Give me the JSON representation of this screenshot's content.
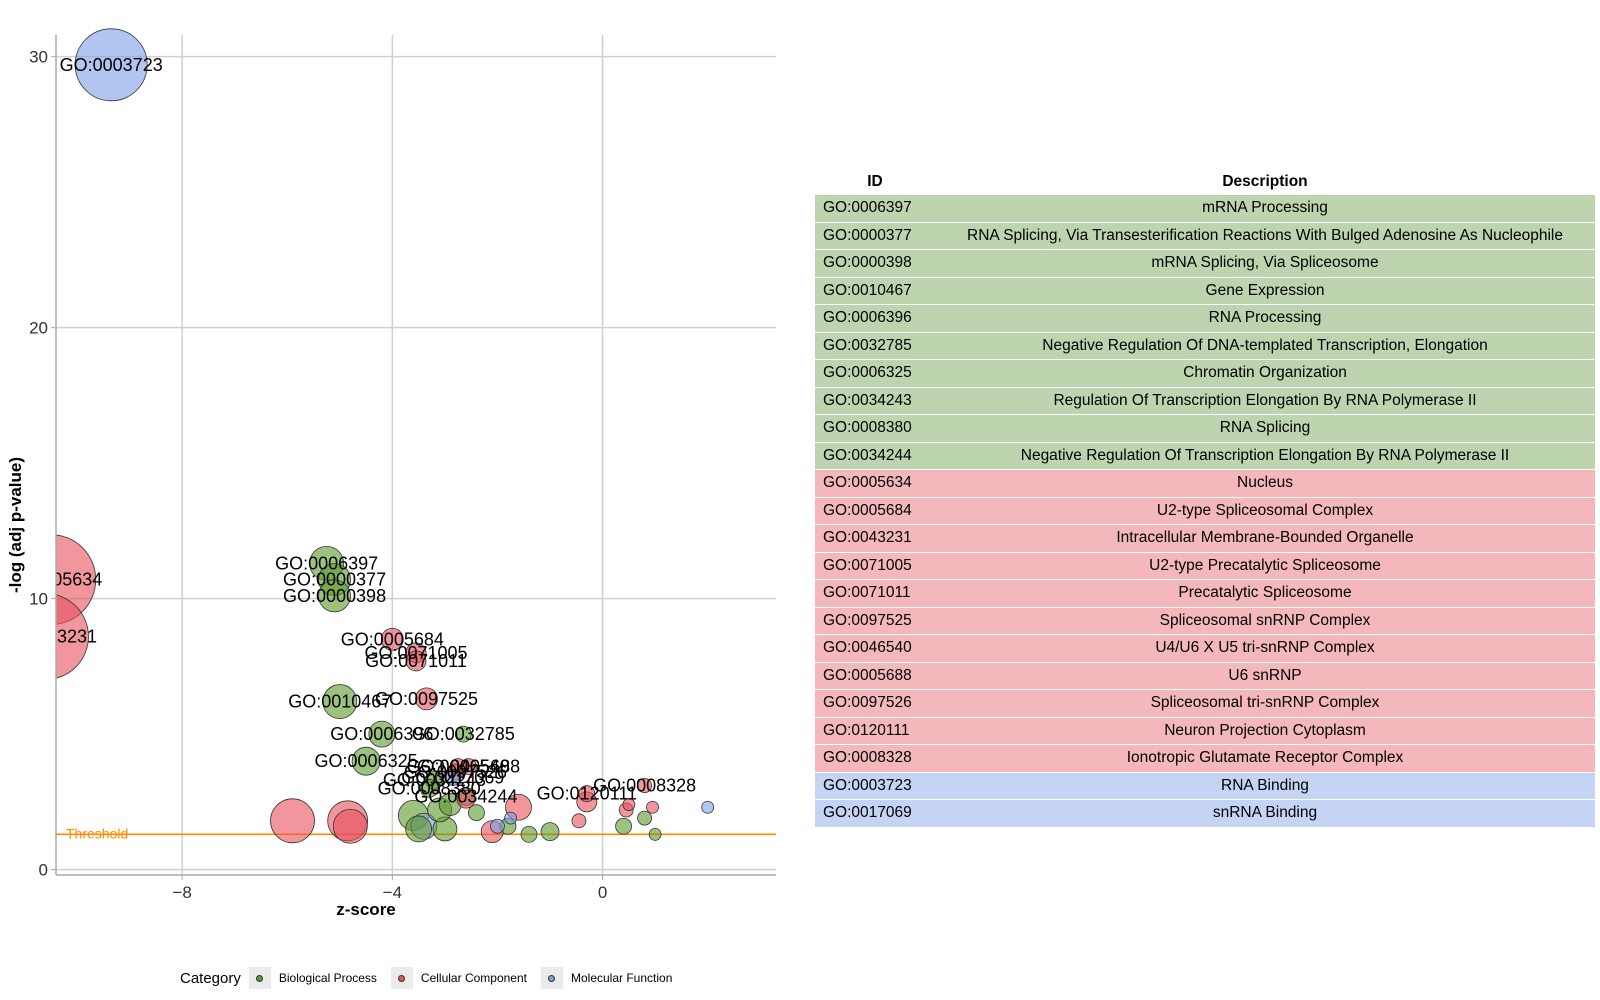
{
  "chart_data": {
    "type": "scatter",
    "xlabel": "z-score",
    "ylabel": "-log (adj p-value)",
    "xlim": [
      -10.4,
      3.3
    ],
    "ylim": [
      -0.2,
      30.8
    ],
    "x_ticks": [
      -8,
      -4,
      0
    ],
    "y_ticks": [
      0,
      10,
      20,
      30
    ],
    "grid": true,
    "threshold": {
      "label": "Threshold",
      "value": 1.3,
      "color": "#FF8C00"
    },
    "legend": {
      "title": "Category",
      "position": "bottom",
      "items": [
        {
          "label": "Biological Process",
          "color": "#5C9A2A"
        },
        {
          "label": "Cellular Component",
          "color": "#E8505B"
        },
        {
          "label": "Molecular Function",
          "color": "#7F9FE8"
        }
      ]
    },
    "points": [
      {
        "id": "GO:0003723",
        "x": -9.35,
        "y": 29.7,
        "size": 36,
        "category": "Molecular Function",
        "label": "GO:0003723"
      },
      {
        "id": "GO:0005634",
        "x": -10.5,
        "y": 10.7,
        "size": 45,
        "category": "Cellular Component",
        "label": "GO:0005634"
      },
      {
        "id": "GO:0043231",
        "x": -10.6,
        "y": 8.6,
        "size": 43,
        "category": "Cellular Component",
        "label": "GO:0043231"
      },
      {
        "id": "GO:0006397",
        "x": -5.25,
        "y": 11.3,
        "size": 17,
        "category": "Biological Process",
        "label": "GO:0006397"
      },
      {
        "id": "GO:0000377",
        "x": -5.1,
        "y": 10.7,
        "size": 16,
        "category": "Biological Process",
        "label": "GO:0000377"
      },
      {
        "id": "GO:0000398",
        "x": -5.1,
        "y": 10.1,
        "size": 16,
        "category": "Biological Process",
        "label": "GO:0000398"
      },
      {
        "id": "GO:0005684",
        "x": -4.0,
        "y": 8.5,
        "size": 11,
        "category": "Cellular Component",
        "label": "GO:0005684"
      },
      {
        "id": "GO:0071005",
        "x": -3.55,
        "y": 8.0,
        "size": 10,
        "category": "Cellular Component",
        "label": "GO:0071005"
      },
      {
        "id": "GO:0071011",
        "x": -3.55,
        "y": 7.7,
        "size": 10,
        "category": "Cellular Component",
        "label": "GO:0071011"
      },
      {
        "id": "GO:0010467",
        "x": -5.0,
        "y": 6.2,
        "size": 17,
        "category": "Biological Process",
        "label": "GO:0010467"
      },
      {
        "id": "GO:0097525",
        "x": -3.35,
        "y": 6.3,
        "size": 11,
        "category": "Cellular Component",
        "label": "GO:0097525"
      },
      {
        "id": "GO:0006396",
        "x": -4.2,
        "y": 5.0,
        "size": 13,
        "category": "Biological Process",
        "label": "GO:0006396"
      },
      {
        "id": "GO:0032785",
        "x": -2.65,
        "y": 5.0,
        "size": 8,
        "category": "Biological Process",
        "label": "GO:0032785"
      },
      {
        "id": "GO:0006325",
        "x": -4.5,
        "y": 4.0,
        "size": 14,
        "category": "Biological Process",
        "label": "GO:0006325"
      },
      {
        "id": "GO:0046540",
        "x": -2.75,
        "y": 3.8,
        "size": 8,
        "category": "Cellular Component",
        "label": "GO:0046540"
      },
      {
        "id": "GO:0005688",
        "x": -2.55,
        "y": 3.8,
        "size": 8,
        "category": "Cellular Component",
        "label": "GO:0005688"
      },
      {
        "id": "GO:0097526",
        "x": -2.8,
        "y": 3.6,
        "size": 8,
        "category": "Cellular Component",
        "label": "GO:0097526"
      },
      {
        "id": "GO:0017069",
        "x": -2.85,
        "y": 3.4,
        "size": 8,
        "category": "Molecular Function",
        "label": "GO:0017069"
      },
      {
        "id": "GO:0034243",
        "x": -3.2,
        "y": 3.3,
        "size": 9,
        "category": "Biological Process",
        "label": "GO:0034243"
      },
      {
        "id": "GO:0008380",
        "x": -3.3,
        "y": 3.0,
        "size": 9,
        "category": "Biological Process",
        "label": "GO:0008380"
      },
      {
        "id": "GO:0034244",
        "x": -2.6,
        "y": 2.7,
        "size": 9,
        "category": "Biological Process",
        "label": "GO:0034244"
      },
      {
        "id": "GO:0120111",
        "x": -0.3,
        "y": 2.8,
        "size": 8,
        "category": "Cellular Component",
        "label": "GO:0120111"
      },
      {
        "id": "GO:0008328",
        "x": 0.8,
        "y": 3.1,
        "size": 7,
        "category": "Cellular Component",
        "label": "GO:0008328"
      },
      {
        "id": "",
        "x": -5.9,
        "y": 1.8,
        "size": 22,
        "category": "Cellular Component",
        "label": ""
      },
      {
        "id": "",
        "x": -4.85,
        "y": 1.8,
        "size": 20,
        "category": "Cellular Component",
        "label": ""
      },
      {
        "id": "",
        "x": -4.8,
        "y": 1.6,
        "size": 17,
        "category": "Cellular Component",
        "label": ""
      },
      {
        "id": "",
        "x": -3.6,
        "y": 2.0,
        "size": 15,
        "category": "Biological Process",
        "label": ""
      },
      {
        "id": "",
        "x": -3.4,
        "y": 1.6,
        "size": 13,
        "category": "Molecular Function",
        "label": ""
      },
      {
        "id": "",
        "x": -3.5,
        "y": 1.5,
        "size": 13,
        "category": "Biological Process",
        "label": ""
      },
      {
        "id": "",
        "x": -3.0,
        "y": 1.5,
        "size": 12,
        "category": "Biological Process",
        "label": ""
      },
      {
        "id": "",
        "x": -3.1,
        "y": 2.2,
        "size": 12,
        "category": "Biological Process",
        "label": ""
      },
      {
        "id": "",
        "x": -2.9,
        "y": 2.4,
        "size": 11,
        "category": "Biological Process",
        "label": ""
      },
      {
        "id": "",
        "x": -1.6,
        "y": 2.3,
        "size": 13,
        "category": "Cellular Component",
        "label": ""
      },
      {
        "id": "",
        "x": -2.1,
        "y": 1.4,
        "size": 11,
        "category": "Cellular Component",
        "label": ""
      },
      {
        "id": "",
        "x": -0.3,
        "y": 2.5,
        "size": 10,
        "category": "Cellular Component",
        "label": ""
      },
      {
        "id": "",
        "x": -2.6,
        "y": 2.6,
        "size": 9,
        "category": "Cellular Component",
        "label": ""
      },
      {
        "id": "",
        "x": -2.4,
        "y": 2.1,
        "size": 8,
        "category": "Biological Process",
        "label": ""
      },
      {
        "id": "",
        "x": -1.8,
        "y": 1.6,
        "size": 8,
        "category": "Biological Process",
        "label": ""
      },
      {
        "id": "",
        "x": -1.4,
        "y": 1.3,
        "size": 8,
        "category": "Biological Process",
        "label": ""
      },
      {
        "id": "",
        "x": -1.0,
        "y": 1.4,
        "size": 9,
        "category": "Biological Process",
        "label": ""
      },
      {
        "id": "",
        "x": -2.0,
        "y": 1.6,
        "size": 7,
        "category": "Molecular Function",
        "label": ""
      },
      {
        "id": "",
        "x": -1.75,
        "y": 1.9,
        "size": 6,
        "category": "Molecular Function",
        "label": ""
      },
      {
        "id": "",
        "x": -0.45,
        "y": 1.8,
        "size": 7,
        "category": "Cellular Component",
        "label": ""
      },
      {
        "id": "",
        "x": 0.4,
        "y": 1.6,
        "size": 8,
        "category": "Biological Process",
        "label": ""
      },
      {
        "id": "",
        "x": 0.8,
        "y": 1.9,
        "size": 7,
        "category": "Biological Process",
        "label": ""
      },
      {
        "id": "",
        "x": 0.45,
        "y": 2.2,
        "size": 7,
        "category": "Cellular Component",
        "label": ""
      },
      {
        "id": "",
        "x": 0.5,
        "y": 2.4,
        "size": 6,
        "category": "Cellular Component",
        "label": ""
      },
      {
        "id": "",
        "x": 0.95,
        "y": 2.3,
        "size": 6,
        "category": "Cellular Component",
        "label": ""
      },
      {
        "id": "",
        "x": 1.0,
        "y": 1.3,
        "size": 6,
        "category": "Biological Process",
        "label": ""
      },
      {
        "id": "",
        "x": 2.0,
        "y": 2.3,
        "size": 6,
        "category": "Molecular Function",
        "label": ""
      }
    ]
  },
  "table": {
    "headers": {
      "id": "ID",
      "description": "Description"
    },
    "rows": [
      {
        "id": "GO:0006397",
        "description": "mRNA Processing",
        "category": "Biological Process"
      },
      {
        "id": "GO:0000377",
        "description": "RNA Splicing, Via Transesterification Reactions With Bulged Adenosine As Nucleophile",
        "category": "Biological Process"
      },
      {
        "id": "GO:0000398",
        "description": "mRNA Splicing, Via Spliceosome",
        "category": "Biological Process"
      },
      {
        "id": "GO:0010467",
        "description": "Gene Expression",
        "category": "Biological Process"
      },
      {
        "id": "GO:0006396",
        "description": "RNA Processing",
        "category": "Biological Process"
      },
      {
        "id": "GO:0032785",
        "description": "Negative Regulation Of DNA-templated Transcription, Elongation",
        "category": "Biological Process"
      },
      {
        "id": "GO:0006325",
        "description": "Chromatin Organization",
        "category": "Biological Process"
      },
      {
        "id": "GO:0034243",
        "description": "Regulation Of Transcription Elongation By RNA Polymerase II",
        "category": "Biological Process"
      },
      {
        "id": "GO:0008380",
        "description": "RNA Splicing",
        "category": "Biological Process"
      },
      {
        "id": "GO:0034244",
        "description": "Negative Regulation Of Transcription Elongation By RNA Polymerase II",
        "category": "Biological Process"
      },
      {
        "id": "GO:0005634",
        "description": "Nucleus",
        "category": "Cellular Component"
      },
      {
        "id": "GO:0005684",
        "description": "U2-type Spliceosomal Complex",
        "category": "Cellular Component"
      },
      {
        "id": "GO:0043231",
        "description": "Intracellular Membrane-Bounded Organelle",
        "category": "Cellular Component"
      },
      {
        "id": "GO:0071005",
        "description": "U2-type Precatalytic Spliceosome",
        "category": "Cellular Component"
      },
      {
        "id": "GO:0071011",
        "description": "Precatalytic Spliceosome",
        "category": "Cellular Component"
      },
      {
        "id": "GO:0097525",
        "description": "Spliceosomal snRNP Complex",
        "category": "Cellular Component"
      },
      {
        "id": "GO:0046540",
        "description": "U4/U6 X U5 tri-snRNP Complex",
        "category": "Cellular Component"
      },
      {
        "id": "GO:0005688",
        "description": "U6 snRNP",
        "category": "Cellular Component"
      },
      {
        "id": "GO:0097526",
        "description": "Spliceosomal tri-snRNP Complex",
        "category": "Cellular Component"
      },
      {
        "id": "GO:0120111",
        "description": "Neuron Projection Cytoplasm",
        "category": "Cellular Component"
      },
      {
        "id": "GO:0008328",
        "description": "Ionotropic Glutamate Receptor Complex",
        "category": "Cellular Component"
      },
      {
        "id": "GO:0003723",
        "description": "RNA Binding",
        "category": "Molecular Function"
      },
      {
        "id": "GO:0017069",
        "description": "snRNA Binding",
        "category": "Molecular Function"
      }
    ],
    "row_colors": {
      "Biological Process": "#BDD4AE",
      "Cellular Component": "#F4B8BC",
      "Molecular Function": "#C5D3F4"
    }
  }
}
